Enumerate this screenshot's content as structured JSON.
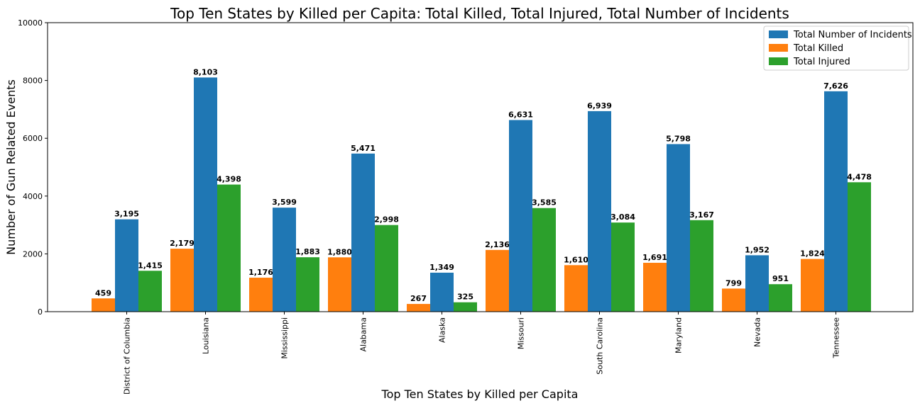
{
  "chart_data": {
    "type": "bar",
    "title": "Top Ten States by Killed per Capita: Total Killed, Total Injured, Total Number of Incidents",
    "xlabel": "Top Ten States by Killed per Capita",
    "ylabel": "Number of Gun Related Events",
    "ylim": [
      0,
      10000
    ],
    "yticks": [
      0,
      2000,
      4000,
      6000,
      8000,
      10000
    ],
    "legend_position": "top-right",
    "grid": false,
    "categories": [
      "District of Columbia",
      "Louisiana",
      "Mississippi",
      "Alabama",
      "Alaska",
      "Missouri",
      "South Carolina",
      "Maryland",
      "Nevada",
      "Tennessee"
    ],
    "series": [
      {
        "name": "Total Killed",
        "color": "#ff7f0e",
        "values": [
          459,
          2179,
          1176,
          1880,
          267,
          2136,
          1610,
          1691,
          799,
          1824
        ],
        "labels": [
          "459",
          "2,179",
          "1,176",
          "1,880",
          "267",
          "2,136",
          "1,610",
          "1,691",
          "799",
          "1,824"
        ]
      },
      {
        "name": "Total Number of Incidents",
        "color": "#1f77b4",
        "values": [
          3195,
          8103,
          3599,
          5471,
          1349,
          6631,
          6939,
          5798,
          1952,
          7626
        ],
        "labels": [
          "3,195",
          "8,103",
          "3,599",
          "5,471",
          "1,349",
          "6,631",
          "6,939",
          "5,798",
          "1,952",
          "7,626"
        ]
      },
      {
        "name": "Total Injured",
        "color": "#2ca02c",
        "values": [
          1415,
          4398,
          1883,
          2998,
          325,
          3585,
          3084,
          3167,
          951,
          4478
        ],
        "labels": [
          "1,415",
          "4,398",
          "1,883",
          "2,998",
          "325",
          "3,585",
          "3,084",
          "3,167",
          "951",
          "4,478"
        ]
      }
    ],
    "legend_order": [
      "Total Number of Incidents",
      "Total Killed",
      "Total Injured"
    ]
  }
}
